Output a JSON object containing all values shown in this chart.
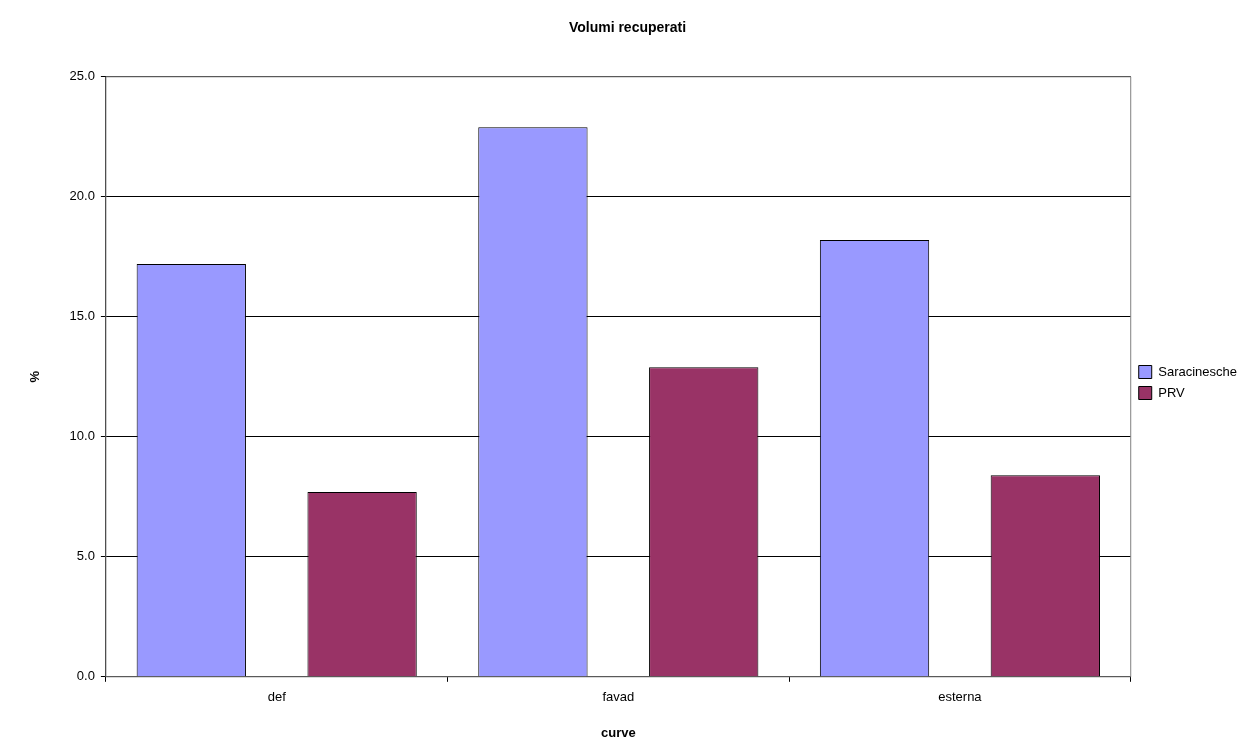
{
  "chart_data": {
    "type": "bar",
    "title": "Volumi recuperati",
    "xlabel": "curve",
    "ylabel": "%",
    "categories": [
      "def",
      "favad",
      "esterna"
    ],
    "series": [
      {
        "name": "Saracinesche",
        "color": "#9999ff",
        "values": [
          17.2,
          22.9,
          18.2
        ]
      },
      {
        "name": "PRV",
        "color": "#993366",
        "values": [
          7.7,
          12.9,
          8.4
        ]
      }
    ],
    "ylim": [
      0,
      25
    ],
    "yticks": [
      {
        "value": 0,
        "label": "0.0"
      },
      {
        "value": 5,
        "label": "5.0"
      },
      {
        "value": 10,
        "label": "10.0"
      },
      {
        "value": 15,
        "label": "15.0"
      },
      {
        "value": 20,
        "label": "20.0"
      },
      {
        "value": 25,
        "label": "25.0"
      }
    ],
    "grid": "y",
    "legend": "right"
  }
}
